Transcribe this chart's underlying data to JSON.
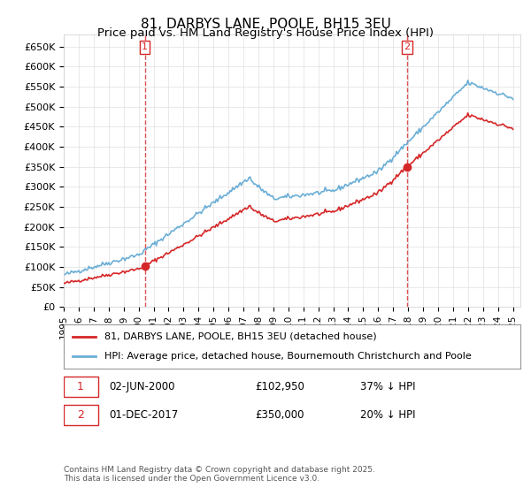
{
  "title": "81, DARBYS LANE, POOLE, BH15 3EU",
  "subtitle": "Price paid vs. HM Land Registry's House Price Index (HPI)",
  "ylabel": "",
  "ylim": [
    0,
    680000
  ],
  "yticks": [
    0,
    50000,
    100000,
    150000,
    200000,
    250000,
    300000,
    350000,
    400000,
    450000,
    500000,
    550000,
    600000,
    650000
  ],
  "ytick_labels": [
    "£0",
    "£50K",
    "£100K",
    "£150K",
    "£200K",
    "£250K",
    "£300K",
    "£350K",
    "£400K",
    "£450K",
    "£500K",
    "£550K",
    "£600K",
    "£650K"
  ],
  "hpi_color": "#6baed6",
  "price_color": "#d62728",
  "vline_color": "#d62728",
  "marker1_date": 2000.42,
  "marker1_price": 102950,
  "marker1_label": "1",
  "marker2_date": 2017.92,
  "marker2_price": 350000,
  "marker2_label": "2",
  "legend_line1": "81, DARBYS LANE, POOLE, BH15 3EU (detached house)",
  "legend_line2": "HPI: Average price, detached house, Bournemouth Christchurch and Poole",
  "annotation1": "1    02-JUN-2000         £102,950         37% ↓ HPI",
  "annotation2": "2    01-DEC-2017         £350,000         20% ↓ HPI",
  "footer": "Contains HM Land Registry data © Crown copyright and database right 2025.\nThis data is licensed under the Open Government Licence v3.0.",
  "background_color": "#ffffff",
  "grid_color": "#e0e0e0",
  "title_fontsize": 11,
  "subtitle_fontsize": 9.5,
  "tick_fontsize": 8,
  "legend_fontsize": 8
}
